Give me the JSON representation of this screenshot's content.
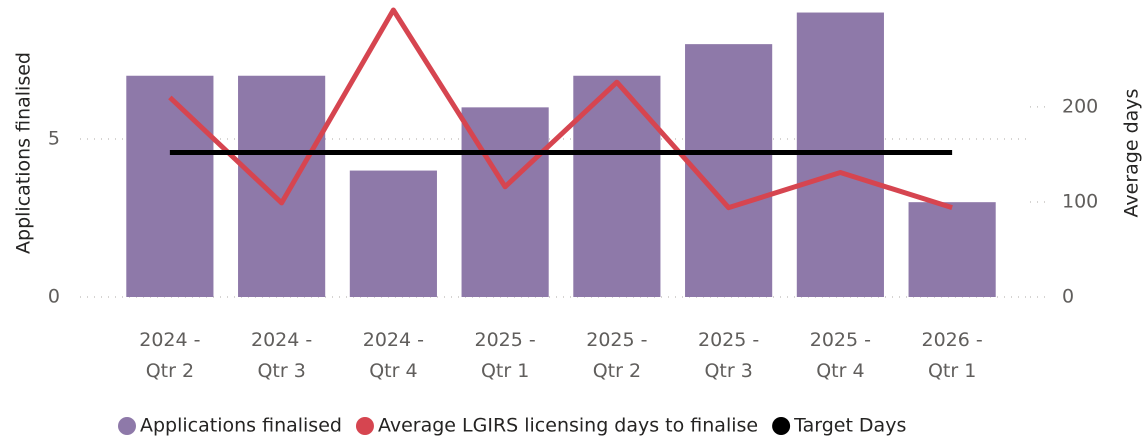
{
  "chart_data": {
    "type": "combo",
    "y_label": "Applications finalised",
    "y2_label": "Average days",
    "categories": [
      "2024 - Qtr 2",
      "2024 - Qtr 3",
      "2024 - Qtr 4",
      "2025 - Qtr 1",
      "2025 - Qtr 2",
      "2025 - Qtr 3",
      "2025 - Qtr 4",
      "2026 - Qtr 1"
    ],
    "series": [
      {
        "name": "Applications finalised",
        "type": "bar",
        "color": "#8e79a9",
        "values": [
          7,
          7,
          4,
          6,
          7,
          8,
          9,
          3
        ]
      },
      {
        "name": "Average LGIRS licensing days to finalise",
        "type": "line",
        "axis": "y2",
        "color": "#d64550",
        "values": [
          210,
          99,
          302,
          116,
          226,
          94,
          131,
          94
        ]
      },
      {
        "name": "Target Days",
        "type": "line",
        "axis": "y2",
        "color": "#000000",
        "values": [
          152,
          152,
          152,
          152,
          152,
          152,
          152,
          152
        ]
      }
    ],
    "ylim": [
      0,
      9.08
    ],
    "yticks": [
      0,
      5
    ],
    "y2lim": [
      0,
      302
    ],
    "y2ticks": [
      0,
      100,
      200
    ],
    "grid": true,
    "legend": "bottom"
  }
}
